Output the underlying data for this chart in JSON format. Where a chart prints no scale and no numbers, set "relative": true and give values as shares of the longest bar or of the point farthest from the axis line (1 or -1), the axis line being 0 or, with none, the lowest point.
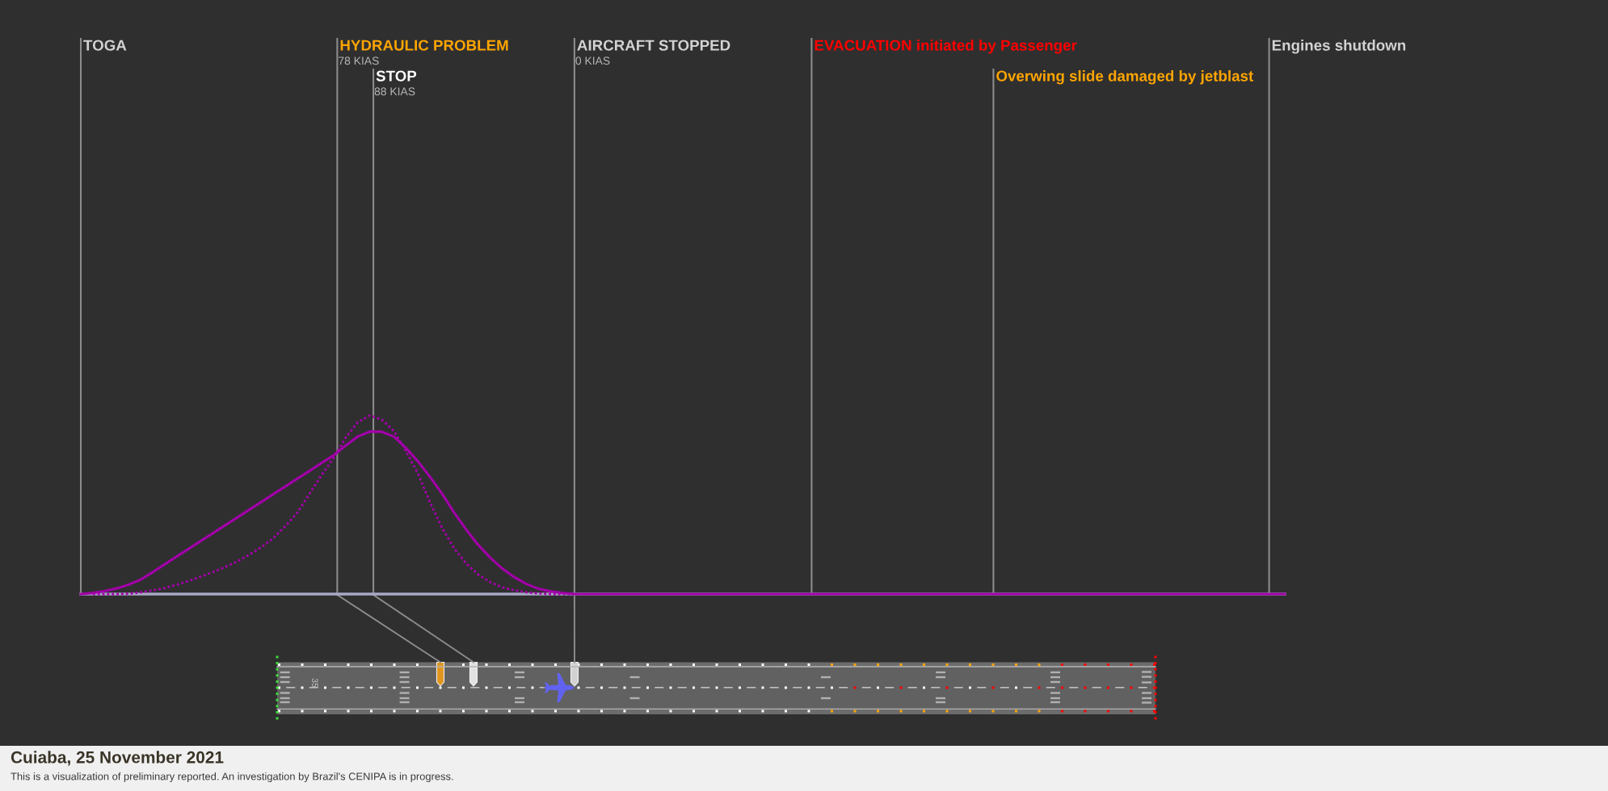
{
  "chart_data": {
    "type": "line",
    "title": "Cuiaba, 25 November 2021",
    "subtitle": "This is a visualization of preliminary reported. An investigation by Brazil's CENIPA is in progress.",
    "relative": true,
    "categories": [
      null,
      null,
      null,
      null,
      null,
      null,
      null,
      null,
      null,
      null,
      null,
      null,
      null,
      null,
      null,
      null,
      null,
      null,
      null,
      null,
      null,
      null,
      null,
      null,
      null,
      null,
      null,
      null,
      null,
      null,
      null,
      null,
      null,
      null,
      null,
      null,
      null,
      null,
      null,
      null,
      null,
      null,
      null,
      null,
      null,
      null,
      null,
      null,
      null,
      null,
      null,
      null,
      null,
      null,
      null,
      null,
      null,
      null,
      null,
      null,
      null,
      null,
      null,
      null,
      null,
      null,
      null,
      null,
      null,
      null,
      null,
      null,
      null,
      null,
      null,
      null,
      null,
      null,
      null,
      null,
      null,
      null,
      null,
      null,
      null,
      null,
      null,
      null,
      null,
      null,
      null,
      null,
      null,
      null,
      null,
      null,
      null,
      null,
      null,
      null,
      null
    ],
    "series": [
      {
        "color": "#a100a8",
        "line_style": "solid",
        "values": [
          0,
          0.006,
          0.017,
          0.032,
          0.053,
          0.082,
          0.124,
          0.168,
          0.212,
          0.255,
          0.299,
          0.342,
          0.386,
          0.429,
          0.473,
          0.516,
          0.56,
          0.603,
          0.647,
          0.69,
          0.734,
          0.777,
          0.832,
          0.882,
          0.91,
          0.909,
          0.882,
          0.819,
          0.743,
          0.657,
          0.562,
          0.457,
          0.362,
          0.276,
          0.204,
          0.143,
          0.095,
          0.057,
          0.03,
          0.015,
          0.006,
          0,
          0,
          0,
          0,
          0,
          0,
          0,
          0,
          0,
          0,
          0,
          0,
          0,
          0,
          0,
          0,
          0,
          0,
          0,
          0,
          0,
          0,
          0,
          0,
          0,
          0,
          0,
          0,
          0,
          0,
          0,
          0,
          0,
          0,
          0,
          0,
          0,
          0,
          0,
          0,
          0,
          0,
          0,
          0,
          0,
          0,
          0,
          0,
          0,
          0,
          0,
          0,
          0,
          0,
          0,
          0,
          0,
          0,
          0,
          0
        ]
      },
      {
        "color": "#a100a8",
        "line_style": "dotted",
        "values": [
          null,
          0,
          0,
          0,
          0.002,
          0.01,
          0.021,
          0.034,
          0.053,
          0.074,
          0.099,
          0.124,
          0.152,
          0.183,
          0.221,
          0.263,
          0.314,
          0.381,
          0.457,
          0.562,
          0.667,
          0.762,
          0.876,
          0.962,
          1.0,
          0.977,
          0.914,
          0.8,
          0.676,
          0.514,
          0.371,
          0.257,
          0.171,
          0.11,
          0.067,
          0.038,
          0.021,
          0.01,
          0.004,
          0,
          0,
          0,
          null,
          null,
          null,
          null,
          null,
          null,
          null,
          null,
          null,
          null,
          null,
          null,
          null,
          null,
          null,
          null,
          null,
          null,
          null,
          null,
          null,
          null,
          null,
          null,
          null,
          null,
          null,
          null,
          null,
          null,
          null,
          null,
          null,
          null,
          null,
          null,
          null,
          null,
          null,
          null,
          null,
          null,
          null,
          null,
          null,
          null,
          null,
          null,
          null,
          null,
          null,
          null,
          null,
          null,
          null,
          null,
          null,
          null,
          null
        ]
      }
    ],
    "annotations": [
      "TOGA",
      "HYDRAULIC PROBLEM\n78 KIAS",
      "STOP\n88 KIAS",
      "AIRCRAFT STOPPED\n0 KIAS",
      "EVACUATION initiated by Passenger",
      "Overwing slide damaged by jetblast",
      "Engines shutdown",
      "35"
    ]
  }
}
